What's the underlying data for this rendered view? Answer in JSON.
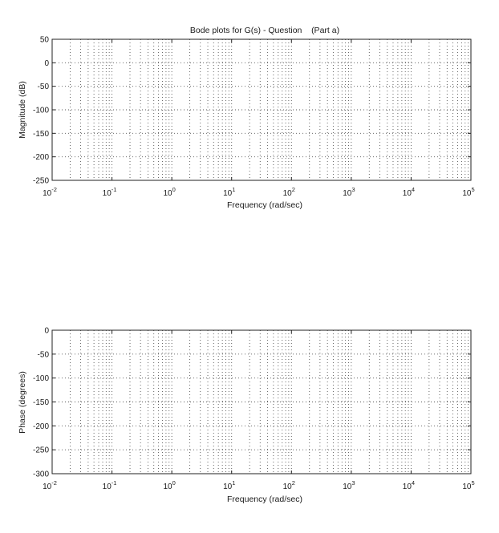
{
  "chart_data": [
    {
      "type": "line",
      "title": "Bode plots for G(s) - Question    (Part a)",
      "xlabel": "Frequency (rad/sec)",
      "ylabel": "Magnitude (dB)",
      "xscale": "log",
      "xlim": [
        0.01,
        100000
      ],
      "ylim": [
        -250,
        50
      ],
      "xticks": [
        {
          "base": "10",
          "exp": "-2"
        },
        {
          "base": "10",
          "exp": "-1"
        },
        {
          "base": "10",
          "exp": "0"
        },
        {
          "base": "10",
          "exp": "1"
        },
        {
          "base": "10",
          "exp": "2"
        },
        {
          "base": "10",
          "exp": "3"
        },
        {
          "base": "10",
          "exp": "4"
        },
        {
          "base": "10",
          "exp": "5"
        }
      ],
      "yticks": [
        "50",
        "0",
        "-50",
        "-100",
        "-150",
        "-200",
        "-250"
      ],
      "grid": true,
      "series": []
    },
    {
      "type": "line",
      "title": "",
      "xlabel": "Frequency (rad/sec)",
      "ylabel": "Phase (degrees)",
      "xscale": "log",
      "xlim": [
        0.01,
        100000
      ],
      "ylim": [
        -300,
        0
      ],
      "xticks": [
        {
          "base": "10",
          "exp": "-2"
        },
        {
          "base": "10",
          "exp": "-1"
        },
        {
          "base": "10",
          "exp": "0"
        },
        {
          "base": "10",
          "exp": "1"
        },
        {
          "base": "10",
          "exp": "2"
        },
        {
          "base": "10",
          "exp": "3"
        },
        {
          "base": "10",
          "exp": "4"
        },
        {
          "base": "10",
          "exp": "5"
        }
      ],
      "yticks": [
        "0",
        "-50",
        "-100",
        "-150",
        "-200",
        "-250",
        "-300"
      ],
      "grid": true,
      "series": []
    }
  ]
}
